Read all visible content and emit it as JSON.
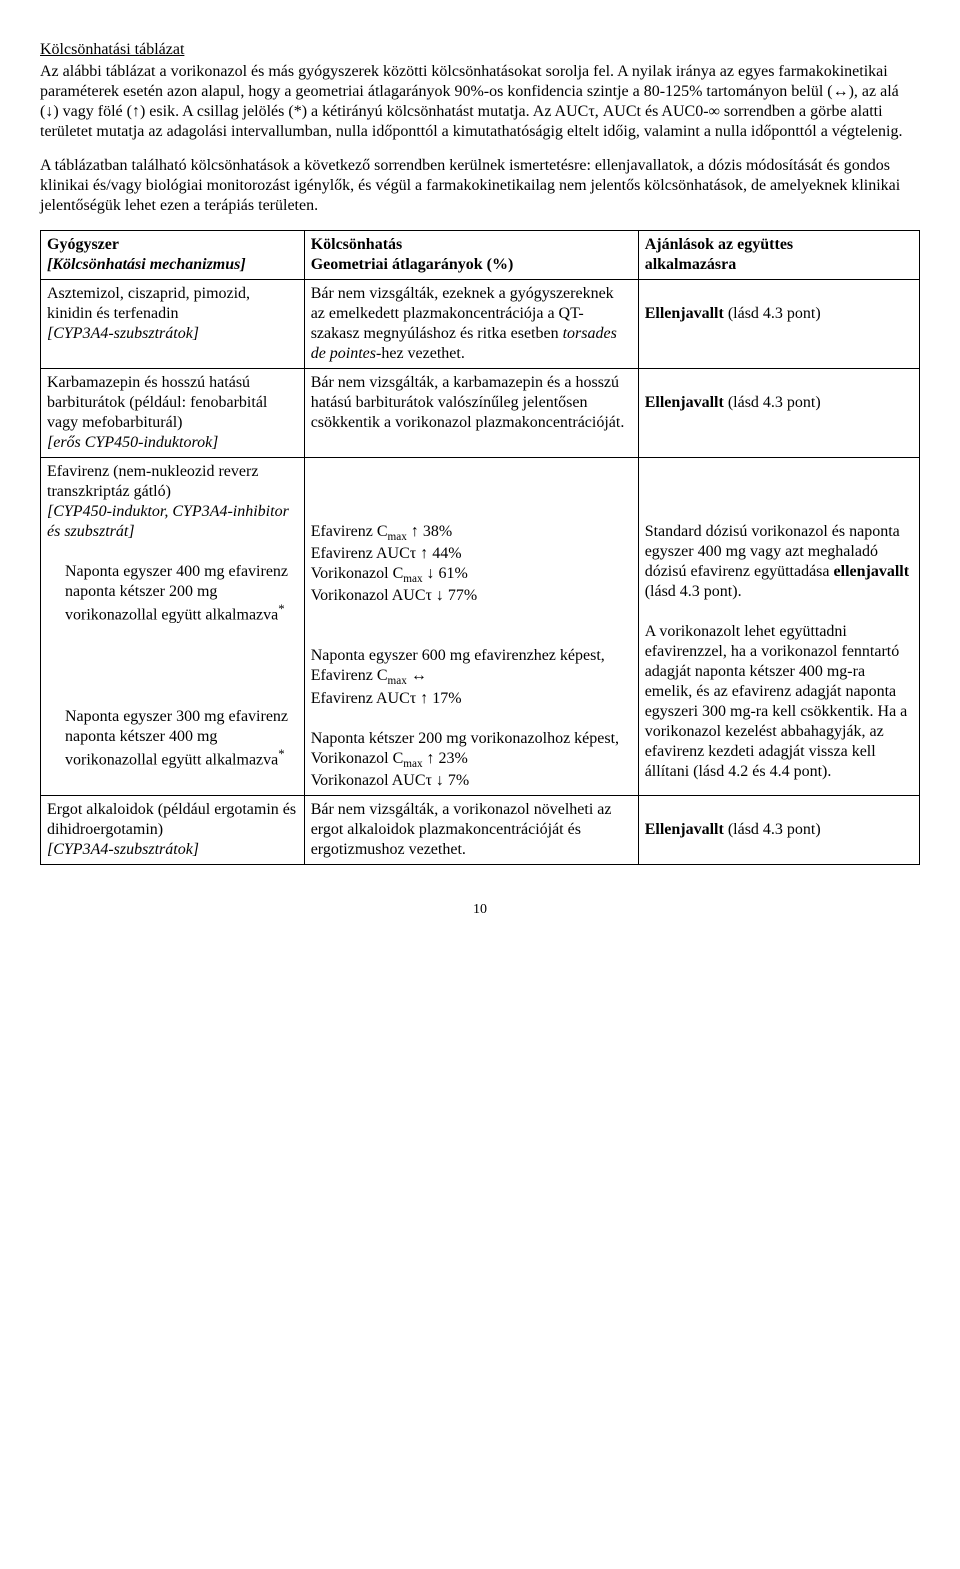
{
  "heading": "Kölcsönhatási táblázat",
  "para1": "Az alábbi táblázat a vorikonazol és más gyógyszerek közötti kölcsönhatásokat sorolja fel. A nyilak iránya az egyes farmakokinetikai paraméterek esetén azon alapul, hogy a geometriai átlagarányok 90%-os konfidencia szintje a 80-125% tartományon belül (↔), az alá (↓) vagy fölé (↑) esik. A csillag jelölés (*) a kétirányú kölcsönhatást mutatja. Az AUCτ, AUCt és AUC0-∞ sorrendben a görbe alatti területet mutatja az adagolási intervallumban, nulla időponttól a kimutathatóságig eltelt időig, valamint a nulla időponttól a végtelenig.",
  "para2": "A táblázatban található kölcsönhatások a következő sorrendben kerülnek ismertetésre: ellenjavallatok, a dózis módosítását és gondos klinikai és/vagy biológiai monitorozást igénylők, és végül a farmakokinetikailag nem jelentős kölcsönhatások, de amelyeknek klinikai jelentőségük lehet ezen a terápiás területen.",
  "table": {
    "header": {
      "c1a": "Gyógyszer",
      "c1b": "[Kölcsönhatási mechanizmus]",
      "c2a": "Kölcsönhatás",
      "c2b": "Geometriai átlagarányok (%)",
      "c3a": "Ajánlások az együttes",
      "c3b": "alkalmazásra"
    },
    "r1": {
      "c1_line1": "Asztemizol, ciszaprid, pimozid, kinidin és terfenadin",
      "c1_line2": "[CYP3A4-szubsztrátok]",
      "c2_a": "Bár nem vizsgálták, ezeknek a gyógyszereknek az emelkedett plazmakoncentrációja a QT-szakasz megnyúláshoz és ritka esetben ",
      "c2_b": "torsades de pointes",
      "c2_c": "-hez vezethet.",
      "c3_a": "Ellenjavallt",
      "c3_b": " (lásd 4.3 pont)"
    },
    "r2": {
      "c1_line1": "Karbamazepin és hosszú hatású barbiturátok (például: fenobarbitál vagy mefobarbiturál)",
      "c1_line2": "[erős CYP450-induktorok]",
      "c2": "Bár nem vizsgálták, a karbamazepin és a hosszú hatású barbiturátok valószínűleg jelentősen csökkentik a vorikonazol plazmakoncentrációját.",
      "c3_a": "Ellenjavallt",
      "c3_b": " (lásd 4.3 pont)"
    },
    "r3": {
      "c1_line1": "Efavirenz (nem-nukleozid reverz transzkriptáz gátló)",
      "c1_line2": "[CYP450-induktor, CYP3A4-inhibitor és szubsztrát]",
      "c1_block1a": "Naponta egyszer 400 mg efavirenz naponta kétszer 200 mg vorikonazollal együtt alkalmazva",
      "c1_block1b": "*",
      "c1_block2a": "Naponta egyszer 300 mg efavirenz naponta kétszer 400 mg vorikonazollal együtt alkalmazva",
      "c1_block2b": "*",
      "c2_b1_l1_a": "Efavirenz C",
      "c2_b1_l1_sub": "max",
      "c2_b1_l1_c": " ↑ 38%",
      "c2_b1_l2": "Efavirenz AUCτ ↑ 44%",
      "c2_b1_l3_a": "Vorikonazol C",
      "c2_b1_l3_sub": "max",
      "c2_b1_l3_c": " ↓ 61%",
      "c2_b1_l4": "Vorikonazol AUCτ ↓ 77%",
      "c2_b2_l1": "Naponta egyszer 600 mg efavirenzhez képest,",
      "c2_b2_l2_a": "Efavirenz C",
      "c2_b2_l2_sub": "max",
      "c2_b2_l2_c": " ↔",
      "c2_b2_l3": "Efavirenz AUCτ ↑ 17%",
      "c2_b3_l1": "Naponta kétszer 200 mg vorikonazolhoz képest,",
      "c2_b3_l2_a": "Vorikonazol C",
      "c2_b3_l2_sub": "max",
      "c2_b3_l2_c": " ↑ 23%",
      "c2_b3_l3": "Vorikonazol AUCτ ↓ 7%",
      "c3_p1_a": "Standard dózisú vorikonazol és naponta egyszer 400 mg vagy azt meghaladó dózisú efavirenz együttadása ",
      "c3_p1_b": "ellenjavallt",
      "c3_p1_c": " (lásd 4.3 pont).",
      "c3_p2": "A vorikonazolt lehet együttadni efavirenzzel, ha a vorikonazol fenntartó adagját naponta kétszer 400 mg-ra emelik, és az efavirenz adagját naponta egyszeri 300 mg-ra kell csökkentik. Ha a vorikonazol kezelést abbahagyják, az efavirenz kezdeti adagját vissza kell állítani (lásd 4.2 és 4.4 pont)."
    },
    "r4": {
      "c1_line1": "Ergot alkaloidok (például ergotamin és dihidroergotamin)",
      "c1_line2": "[CYP3A4-szubsztrátok]",
      "c2": "Bár nem vizsgálták, a vorikonazol növelheti az ergot alkaloidok plazmakoncentrációját és ergotizmushoz vezethet.",
      "c3_a": "Ellenjavallt",
      "c3_b": " (lásd 4.3 pont)"
    }
  },
  "pageNum": "10"
}
